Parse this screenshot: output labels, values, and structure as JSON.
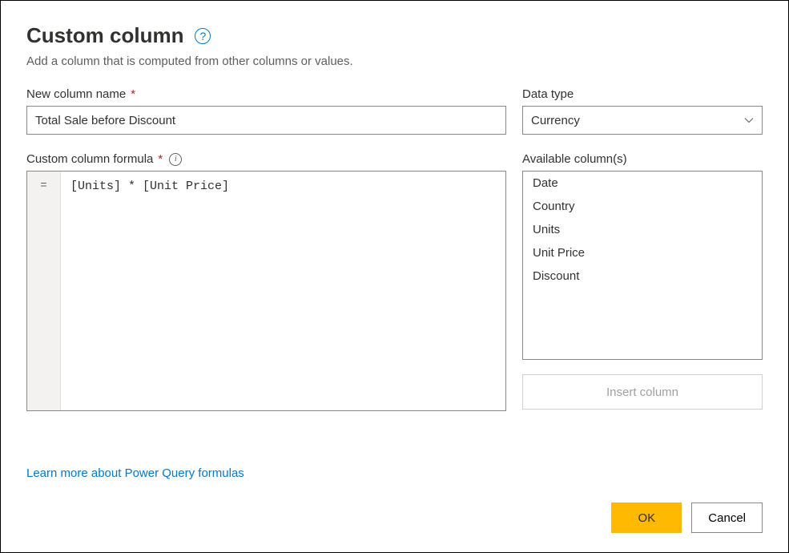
{
  "header": {
    "title": "Custom column",
    "subtitle": "Add a column that is computed from other columns or values."
  },
  "newColumnName": {
    "label": "New column name",
    "value": "Total Sale before Discount"
  },
  "dataType": {
    "label": "Data type",
    "value": "Currency"
  },
  "formula": {
    "label": "Custom column formula",
    "value": "[Units] * [Unit Price]"
  },
  "availableColumns": {
    "label": "Available column(s)",
    "items": [
      "Date",
      "Country",
      "Units",
      "Unit Price",
      "Discount"
    ]
  },
  "insertButton": {
    "label": "Insert column"
  },
  "learnMore": {
    "text": "Learn more about Power Query formulas"
  },
  "footer": {
    "ok": "OK",
    "cancel": "Cancel"
  },
  "colors": {
    "primary_button": "#ffb900",
    "link": "#0078d4",
    "border": "#8a8886",
    "text": "#323130",
    "subtext": "#605e5c",
    "required": "#a4262c",
    "gutter_bg": "#f3f2f1"
  }
}
